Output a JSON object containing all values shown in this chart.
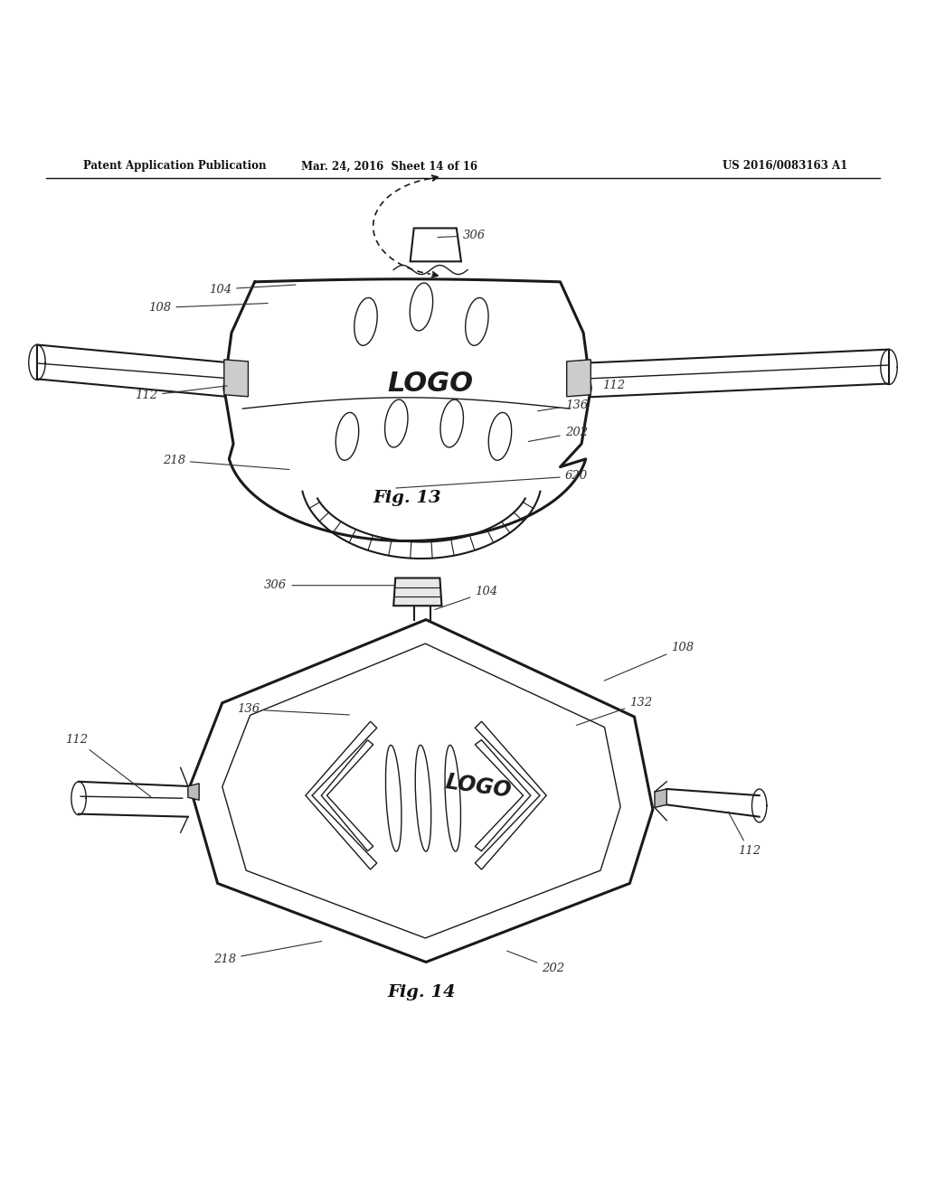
{
  "page_bg": "#ffffff",
  "header_text_left": "Patent Application Publication",
  "header_text_mid": "Mar. 24, 2016  Sheet 14 of 16",
  "header_text_right": "US 2016/0083163 A1",
  "fig13_caption": "Fig. 13",
  "fig14_caption": "Fig. 14",
  "line_color": "#1a1a1a",
  "label_color": "#333333"
}
